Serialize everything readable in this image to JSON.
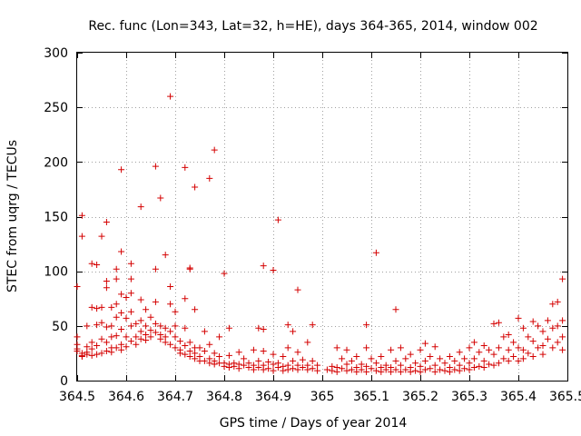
{
  "chart_data": {
    "type": "scatter",
    "title": "Rec. func (Lon=343, Lat=32, h=HE), days 364-365, 2014, window 002",
    "xlabel": "GPS time / Days of year 2014",
    "ylabel": "STEC from uqrg / TECUs",
    "xlim": [
      364.5,
      365.5
    ],
    "ylim": [
      0,
      300
    ],
    "xticks": [
      364.5,
      364.6,
      364.7,
      364.8,
      364.9,
      365.0,
      365.1,
      365.2,
      365.3,
      365.4,
      365.5
    ],
    "xtick_labels": [
      "364.5",
      "364.6",
      "364.7",
      "364.8",
      "364.9",
      "365",
      "365.1",
      "365.2",
      "365.3",
      "365.4",
      "365.5"
    ],
    "yticks": [
      0,
      50,
      100,
      150,
      200,
      250,
      300
    ],
    "ytick_labels": [
      "0",
      "50",
      "100",
      "150",
      "200",
      "250",
      "300"
    ],
    "grid": true,
    "marker": "+",
    "color": "#d40000",
    "points": [
      [
        364.5,
        86
      ],
      [
        364.51,
        151
      ],
      [
        364.51,
        132
      ],
      [
        364.52,
        50
      ],
      [
        364.53,
        107
      ],
      [
        364.54,
        106
      ],
      [
        364.55,
        132
      ],
      [
        364.56,
        145
      ],
      [
        364.56,
        91
      ],
      [
        364.56,
        85
      ],
      [
        364.57,
        67
      ],
      [
        364.58,
        102
      ],
      [
        364.58,
        93
      ],
      [
        364.59,
        193
      ],
      [
        364.59,
        118
      ],
      [
        364.59,
        79
      ],
      [
        364.6,
        76
      ],
      [
        364.61,
        107
      ],
      [
        364.61,
        93
      ],
      [
        364.63,
        159
      ],
      [
        364.63,
        74
      ],
      [
        364.66,
        196
      ],
      [
        364.66,
        102
      ],
      [
        364.67,
        167
      ],
      [
        364.68,
        115
      ],
      [
        364.69,
        260
      ],
      [
        364.69,
        86
      ],
      [
        364.7,
        63
      ],
      [
        364.72,
        195
      ],
      [
        364.72,
        75
      ],
      [
        364.73,
        103
      ],
      [
        364.73,
        102
      ],
      [
        364.74,
        177
      ],
      [
        364.74,
        65
      ],
      [
        364.77,
        185
      ],
      [
        364.78,
        211
      ],
      [
        364.8,
        98
      ],
      [
        364.81,
        48
      ],
      [
        364.87,
        48
      ],
      [
        364.88,
        47
      ],
      [
        364.88,
        105
      ],
      [
        364.9,
        101
      ],
      [
        364.91,
        147
      ],
      [
        364.93,
        51
      ],
      [
        364.94,
        45
      ],
      [
        364.95,
        83
      ],
      [
        364.98,
        51
      ],
      [
        365.09,
        51
      ],
      [
        365.11,
        117
      ],
      [
        365.15,
        65
      ],
      [
        364.5,
        40
      ],
      [
        364.5,
        33
      ],
      [
        364.5,
        29
      ],
      [
        364.5,
        27
      ],
      [
        364.51,
        25
      ],
      [
        364.51,
        23
      ],
      [
        364.51,
        22
      ],
      [
        364.52,
        31
      ],
      [
        364.52,
        26
      ],
      [
        364.52,
        24
      ],
      [
        364.53,
        67
      ],
      [
        364.53,
        35
      ],
      [
        364.53,
        29
      ],
      [
        364.53,
        23
      ],
      [
        364.54,
        66
      ],
      [
        364.54,
        51
      ],
      [
        364.54,
        32
      ],
      [
        364.54,
        24
      ],
      [
        364.55,
        67
      ],
      [
        364.55,
        53
      ],
      [
        364.55,
        38
      ],
      [
        364.55,
        25
      ],
      [
        364.56,
        49
      ],
      [
        364.56,
        35
      ],
      [
        364.56,
        27
      ],
      [
        364.57,
        50
      ],
      [
        364.57,
        40
      ],
      [
        364.57,
        30
      ],
      [
        364.57,
        26
      ],
      [
        364.58,
        70
      ],
      [
        364.58,
        58
      ],
      [
        364.58,
        41
      ],
      [
        364.58,
        30
      ],
      [
        364.59,
        62
      ],
      [
        364.59,
        47
      ],
      [
        364.59,
        33
      ],
      [
        364.59,
        28
      ],
      [
        364.6,
        57
      ],
      [
        364.6,
        40
      ],
      [
        364.6,
        31
      ],
      [
        364.61,
        80
      ],
      [
        364.61,
        63
      ],
      [
        364.61,
        50
      ],
      [
        364.61,
        36
      ],
      [
        364.62,
        52
      ],
      [
        364.62,
        40
      ],
      [
        364.62,
        33
      ],
      [
        364.63,
        55
      ],
      [
        364.63,
        45
      ],
      [
        364.63,
        38
      ],
      [
        364.64,
        65
      ],
      [
        364.64,
        50
      ],
      [
        364.64,
        42
      ],
      [
        364.64,
        37
      ],
      [
        364.65,
        58
      ],
      [
        364.65,
        46
      ],
      [
        364.65,
        40
      ],
      [
        364.66,
        72
      ],
      [
        364.66,
        52
      ],
      [
        364.66,
        44
      ],
      [
        364.67,
        50
      ],
      [
        364.67,
        42
      ],
      [
        364.67,
        38
      ],
      [
        364.68,
        48
      ],
      [
        364.68,
        40
      ],
      [
        364.68,
        35
      ],
      [
        364.69,
        70
      ],
      [
        364.69,
        45
      ],
      [
        364.69,
        33
      ],
      [
        364.7,
        50
      ],
      [
        364.7,
        40
      ],
      [
        364.7,
        30
      ],
      [
        364.71,
        36
      ],
      [
        364.71,
        28
      ],
      [
        364.71,
        25
      ],
      [
        364.72,
        48
      ],
      [
        364.72,
        32
      ],
      [
        364.72,
        24
      ],
      [
        364.73,
        35
      ],
      [
        364.73,
        27
      ],
      [
        364.73,
        22
      ],
      [
        364.74,
        30
      ],
      [
        364.74,
        25
      ],
      [
        364.74,
        20
      ],
      [
        364.75,
        30
      ],
      [
        364.75,
        22
      ],
      [
        364.75,
        18
      ],
      [
        364.76,
        45
      ],
      [
        364.76,
        27
      ],
      [
        364.76,
        18
      ],
      [
        364.77,
        33
      ],
      [
        364.77,
        20
      ],
      [
        364.77,
        16
      ],
      [
        364.78,
        25
      ],
      [
        364.78,
        18
      ],
      [
        364.78,
        15
      ],
      [
        364.79,
        40
      ],
      [
        364.79,
        22
      ],
      [
        364.79,
        16
      ],
      [
        364.8,
        16
      ],
      [
        364.8,
        13
      ],
      [
        364.81,
        23
      ],
      [
        364.81,
        15
      ],
      [
        364.81,
        12
      ],
      [
        364.82,
        16
      ],
      [
        364.82,
        13
      ],
      [
        364.83,
        26
      ],
      [
        364.83,
        15
      ],
      [
        364.83,
        11
      ],
      [
        364.84,
        20
      ],
      [
        364.84,
        14
      ],
      [
        364.85,
        16
      ],
      [
        364.85,
        12
      ],
      [
        364.86,
        28
      ],
      [
        364.86,
        14
      ],
      [
        364.86,
        10
      ],
      [
        364.87,
        18
      ],
      [
        364.87,
        12
      ],
      [
        364.88,
        27
      ],
      [
        364.88,
        14
      ],
      [
        364.88,
        10
      ],
      [
        364.89,
        17
      ],
      [
        364.89,
        11
      ],
      [
        364.9,
        24
      ],
      [
        364.9,
        15
      ],
      [
        364.9,
        9
      ],
      [
        364.91,
        16
      ],
      [
        364.91,
        12
      ],
      [
        364.92,
        22
      ],
      [
        364.92,
        13
      ],
      [
        364.92,
        9
      ],
      [
        364.93,
        30
      ],
      [
        364.93,
        14
      ],
      [
        364.93,
        10
      ],
      [
        364.94,
        18
      ],
      [
        364.94,
        11
      ],
      [
        364.95,
        26
      ],
      [
        364.95,
        14
      ],
      [
        364.95,
        10
      ],
      [
        364.96,
        19
      ],
      [
        364.96,
        12
      ],
      [
        364.97,
        35
      ],
      [
        364.97,
        14
      ],
      [
        364.97,
        10
      ],
      [
        364.98,
        18
      ],
      [
        364.98,
        11
      ],
      [
        364.99,
        14
      ],
      [
        364.99,
        9
      ],
      [
        365.01,
        10
      ],
      [
        365.02,
        13
      ],
      [
        365.02,
        9
      ],
      [
        365.03,
        30
      ],
      [
        365.03,
        12
      ],
      [
        365.03,
        8
      ],
      [
        365.04,
        20
      ],
      [
        365.04,
        11
      ],
      [
        365.05,
        28
      ],
      [
        365.05,
        15
      ],
      [
        365.05,
        9
      ],
      [
        365.06,
        18
      ],
      [
        365.06,
        10
      ],
      [
        365.07,
        22
      ],
      [
        365.07,
        12
      ],
      [
        365.07,
        8
      ],
      [
        365.08,
        15
      ],
      [
        365.08,
        10
      ],
      [
        365.09,
        30
      ],
      [
        365.09,
        13
      ],
      [
        365.09,
        8
      ],
      [
        365.1,
        20
      ],
      [
        365.1,
        11
      ],
      [
        365.11,
        16
      ],
      [
        365.11,
        9
      ],
      [
        365.12,
        22
      ],
      [
        365.12,
        12
      ],
      [
        365.12,
        8
      ],
      [
        365.13,
        14
      ],
      [
        365.13,
        10
      ],
      [
        365.14,
        28
      ],
      [
        365.14,
        12
      ],
      [
        365.14,
        8
      ],
      [
        365.15,
        18
      ],
      [
        365.15,
        10
      ],
      [
        365.16,
        30
      ],
      [
        365.16,
        14
      ],
      [
        365.16,
        8
      ],
      [
        365.17,
        20
      ],
      [
        365.17,
        10
      ],
      [
        365.18,
        24
      ],
      [
        365.18,
        12
      ],
      [
        365.18,
        8
      ],
      [
        365.19,
        16
      ],
      [
        365.19,
        9
      ],
      [
        365.2,
        28
      ],
      [
        365.2,
        13
      ],
      [
        365.2,
        8
      ],
      [
        365.21,
        34
      ],
      [
        365.21,
        18
      ],
      [
        365.21,
        10
      ],
      [
        365.22,
        22
      ],
      [
        365.22,
        11
      ],
      [
        365.23,
        31
      ],
      [
        365.23,
        14
      ],
      [
        365.23,
        8
      ],
      [
        365.24,
        20
      ],
      [
        365.24,
        10
      ],
      [
        365.25,
        16
      ],
      [
        365.25,
        9
      ],
      [
        365.26,
        22
      ],
      [
        365.26,
        12
      ],
      [
        365.26,
        8
      ],
      [
        365.27,
        18
      ],
      [
        365.27,
        10
      ],
      [
        365.28,
        26
      ],
      [
        365.28,
        14
      ],
      [
        365.28,
        9
      ],
      [
        365.29,
        20
      ],
      [
        365.29,
        11
      ],
      [
        365.3,
        30
      ],
      [
        365.3,
        16
      ],
      [
        365.3,
        10
      ],
      [
        365.31,
        35
      ],
      [
        365.31,
        20
      ],
      [
        365.31,
        12
      ],
      [
        365.32,
        26
      ],
      [
        365.32,
        13
      ],
      [
        365.33,
        32
      ],
      [
        365.33,
        18
      ],
      [
        365.33,
        12
      ],
      [
        365.34,
        28
      ],
      [
        365.34,
        15
      ],
      [
        365.35,
        52
      ],
      [
        365.35,
        24
      ],
      [
        365.35,
        14
      ],
      [
        365.36,
        53
      ],
      [
        365.36,
        30
      ],
      [
        365.36,
        16
      ],
      [
        365.37,
        40
      ],
      [
        365.37,
        20
      ],
      [
        365.38,
        42
      ],
      [
        365.38,
        28
      ],
      [
        365.38,
        18
      ],
      [
        365.39,
        35
      ],
      [
        365.39,
        22
      ],
      [
        365.4,
        57
      ],
      [
        365.4,
        30
      ],
      [
        365.4,
        18
      ],
      [
        365.41,
        48
      ],
      [
        365.41,
        28
      ],
      [
        365.41,
        20
      ],
      [
        365.42,
        40
      ],
      [
        365.42,
        25
      ],
      [
        365.43,
        54
      ],
      [
        365.43,
        36
      ],
      [
        365.43,
        22
      ],
      [
        365.44,
        50
      ],
      [
        365.44,
        30
      ],
      [
        365.45,
        45
      ],
      [
        365.45,
        32
      ],
      [
        365.45,
        24
      ],
      [
        365.46,
        55
      ],
      [
        365.46,
        38
      ],
      [
        365.47,
        70
      ],
      [
        365.47,
        48
      ],
      [
        365.47,
        30
      ],
      [
        365.48,
        72
      ],
      [
        365.48,
        50
      ],
      [
        365.48,
        35
      ],
      [
        365.49,
        93
      ],
      [
        365.49,
        55
      ],
      [
        365.49,
        40
      ],
      [
        365.49,
        28
      ]
    ]
  }
}
